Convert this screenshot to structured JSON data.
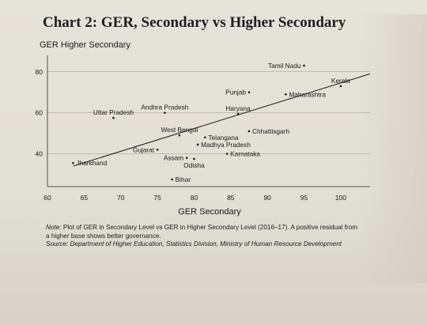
{
  "title": "Chart 2: GER, Secondary vs Higher Secondary",
  "note_label": "Note:",
  "note_text": "Plot of GER in Secondary Level vs GER in Higher Secondary Level (2016–17). A positive residual from a higher base shows better governance.",
  "source_label": "Source:",
  "source_text": "Department of Higher Education, Statistics Division, Ministry of Human Resource Development",
  "chart_data": {
    "type": "scatter",
    "xlabel": "GER Secondary",
    "ylabel": "GER Higher Secondary",
    "xlim": [
      60,
      104
    ],
    "ylim": [
      24,
      88
    ],
    "xticks": [
      60,
      65,
      70,
      75,
      80,
      85,
      90,
      95,
      100
    ],
    "yticks": [
      40,
      60,
      80
    ],
    "grid": "horizontal",
    "trendline": {
      "x": [
        63.5,
        104
      ],
      "y": [
        34,
        79
      ]
    },
    "points": [
      {
        "label": "Tamil Nadu",
        "x": 95,
        "y": 83
      },
      {
        "label": "Kerala",
        "x": 100,
        "y": 73
      },
      {
        "label": "Punjab",
        "x": 87.5,
        "y": 70
      },
      {
        "label": "Maharashtra",
        "x": 92.5,
        "y": 69
      },
      {
        "label": "Uttar Pradesh",
        "x": 69,
        "y": 57.5
      },
      {
        "label": "Andhra Pradesh",
        "x": 76,
        "y": 60
      },
      {
        "label": "Haryana",
        "x": 86,
        "y": 59.5
      },
      {
        "label": "West Bengal",
        "x": 78,
        "y": 49
      },
      {
        "label": "Chhattisgarh",
        "x": 87.5,
        "y": 51
      },
      {
        "label": "Telangana",
        "x": 81.5,
        "y": 48
      },
      {
        "label": "Madhya Pradesh",
        "x": 80.5,
        "y": 44.5
      },
      {
        "label": "Gujarat",
        "x": 75,
        "y": 42
      },
      {
        "label": "Karnataka",
        "x": 84.5,
        "y": 40
      },
      {
        "label": "Assam",
        "x": 79,
        "y": 38
      },
      {
        "label": "Odisha",
        "x": 80,
        "y": 37.5
      },
      {
        "label": "Jharkhand",
        "x": 63.5,
        "y": 35.5
      },
      {
        "label": "Bihar",
        "x": 77,
        "y": 27.5
      }
    ]
  }
}
